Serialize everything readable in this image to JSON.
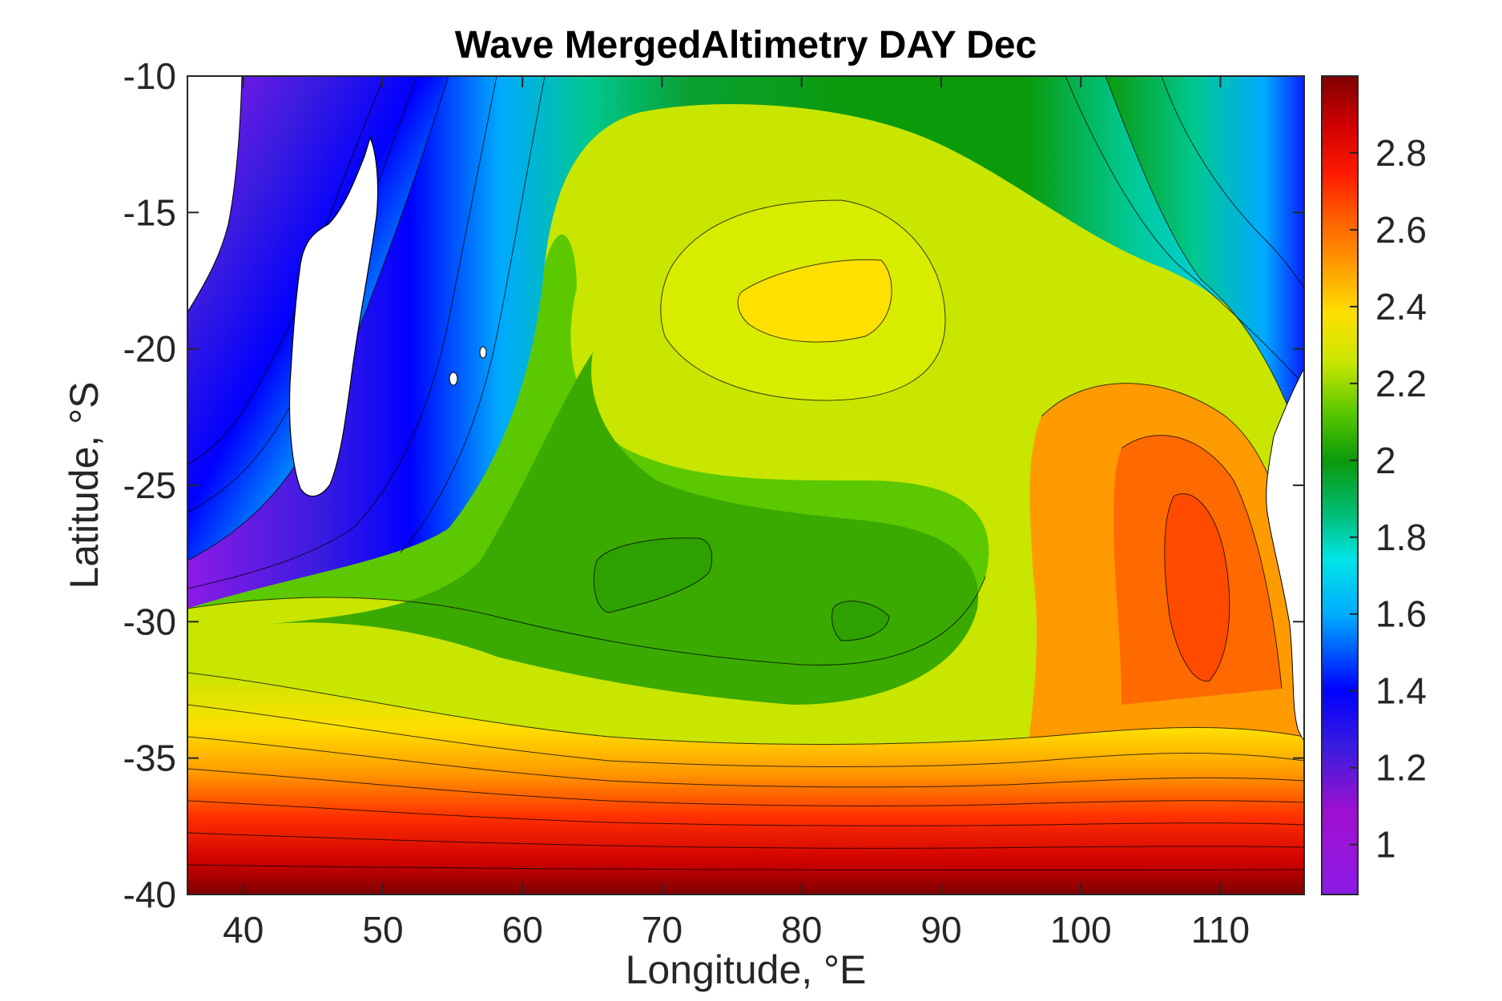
{
  "chart_data": {
    "type": "heatmap",
    "subtype": "filled-contour-map",
    "title": "Wave MergedAltimetry DAY Dec",
    "xlabel": "Longitude, °E",
    "ylabel": "Latitude, °S",
    "xlim": [
      36,
      116
    ],
    "ylim": [
      -40,
      -10
    ],
    "xticks": [
      40,
      50,
      60,
      70,
      80,
      90,
      100,
      110
    ],
    "xtick_labels": [
      "40",
      "50",
      "60",
      "70",
      "80",
      "90",
      "100",
      "110"
    ],
    "yticks": [
      -10,
      -15,
      -20,
      -25,
      -30,
      -35,
      -40
    ],
    "ytick_labels": [
      "-10",
      "-15",
      "-20",
      "-25",
      "-30",
      "-35",
      "-40"
    ],
    "colorbar": {
      "range": [
        0.87,
        3.0
      ],
      "ticks": [
        1,
        1.2,
        1.4,
        1.6,
        1.8,
        2,
        2.2,
        2.4,
        2.6,
        2.8
      ],
      "tick_labels": [
        "1",
        "1.2",
        "1.4",
        "1.6",
        "1.8",
        "2",
        "2.2",
        "2.4",
        "2.6",
        "2.8"
      ],
      "colormap": "jet-like (purple → blue → cyan → green → yellow → orange → red → dark red)"
    },
    "colors": {
      "land": "#ffffff",
      "contour_line": "#000000",
      "colormap_stops": [
        "#8b1be6",
        "#a010d0",
        "#0000ff",
        "#00aaff",
        "#00e5e5",
        "#00b050",
        "#0a9a0a",
        "#5cc800",
        "#c8e600",
        "#ffe000",
        "#ff9a00",
        "#ff3000",
        "#d00000",
        "#800000"
      ]
    },
    "features": [
      {
        "name": "SWH maximum",
        "lon": 81.5,
        "lat": -18.5,
        "value": 2.4
      },
      {
        "name": "SWH minimum region",
        "lon": 70.5,
        "lat": -28.5,
        "value": 2.05
      },
      {
        "name": "SWH minimum region",
        "lon": 85,
        "lat": -30,
        "value": 2.05
      },
      {
        "name": "SWH maximum",
        "lon": 108.5,
        "lat": -28.5,
        "value": 2.6
      }
    ],
    "grid": false
  }
}
